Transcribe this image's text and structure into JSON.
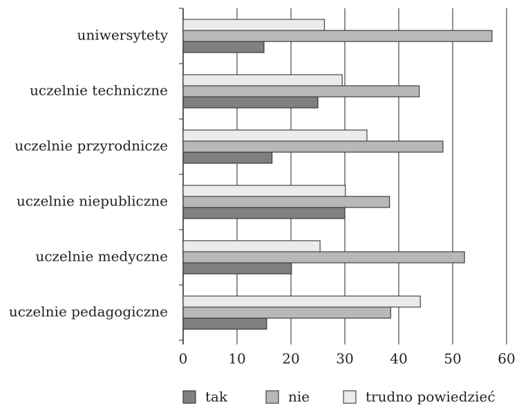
{
  "chart_data": {
    "type": "bar",
    "orientation": "horizontal",
    "categories": [
      "uniwersytety",
      "uczelnie techniczne",
      "uczelnie przyrodnicze",
      "uczelnie niepubliczne",
      "uczelnie medyczne",
      "uczelnie pedagogiczne"
    ],
    "series": [
      {
        "name": "tak",
        "color": "#808080",
        "values": [
          15,
          25,
          16.5,
          30,
          20.1,
          15.5
        ]
      },
      {
        "name": "nie",
        "color": "#b8b8b8",
        "values": [
          57.3,
          43.8,
          48.2,
          38.3,
          52.2,
          38.5
        ]
      },
      {
        "name": "trudno powiedzieć",
        "color": "#ebebeb",
        "values": [
          26.2,
          29.5,
          34.1,
          30.1,
          25.4,
          44
        ]
      }
    ],
    "xlim": [
      0,
      60
    ],
    "xticks": [
      0,
      10,
      20,
      30,
      40,
      50,
      60
    ],
    "grid": true,
    "legend": "bottom"
  }
}
